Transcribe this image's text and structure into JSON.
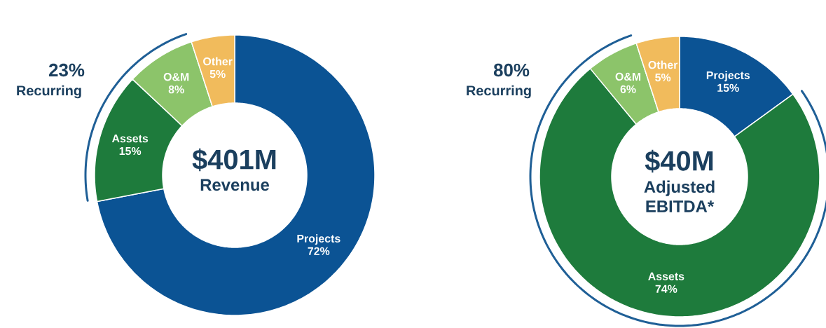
{
  "chart_data": [
    {
      "type": "donut",
      "title": "$401M",
      "subtitle": "Revenue",
      "annotations": [
        "23%",
        "Recurring"
      ],
      "categories": [
        "Projects",
        "Assets",
        "O&M",
        "Other"
      ],
      "values": [
        72,
        15,
        8,
        5
      ],
      "value_labels": [
        "72%",
        "15%",
        "8%",
        "5%"
      ],
      "colors": [
        "#0b5394",
        "#1e7b3c",
        "#8cc46a",
        "#f1bb5c"
      ]
    },
    {
      "type": "donut",
      "title": "$40M",
      "subtitle": "Adjusted EBITDA*",
      "annotations": [
        "80%",
        "Recurring"
      ],
      "categories": [
        "Projects",
        "Assets",
        "O&M",
        "Other"
      ],
      "values": [
        15,
        74,
        6,
        5
      ],
      "value_labels": [
        "15%",
        "74%",
        "6%",
        "5%"
      ],
      "colors": [
        "#0b5394",
        "#1e7b3c",
        "#8cc46a",
        "#f1bb5c"
      ]
    }
  ]
}
